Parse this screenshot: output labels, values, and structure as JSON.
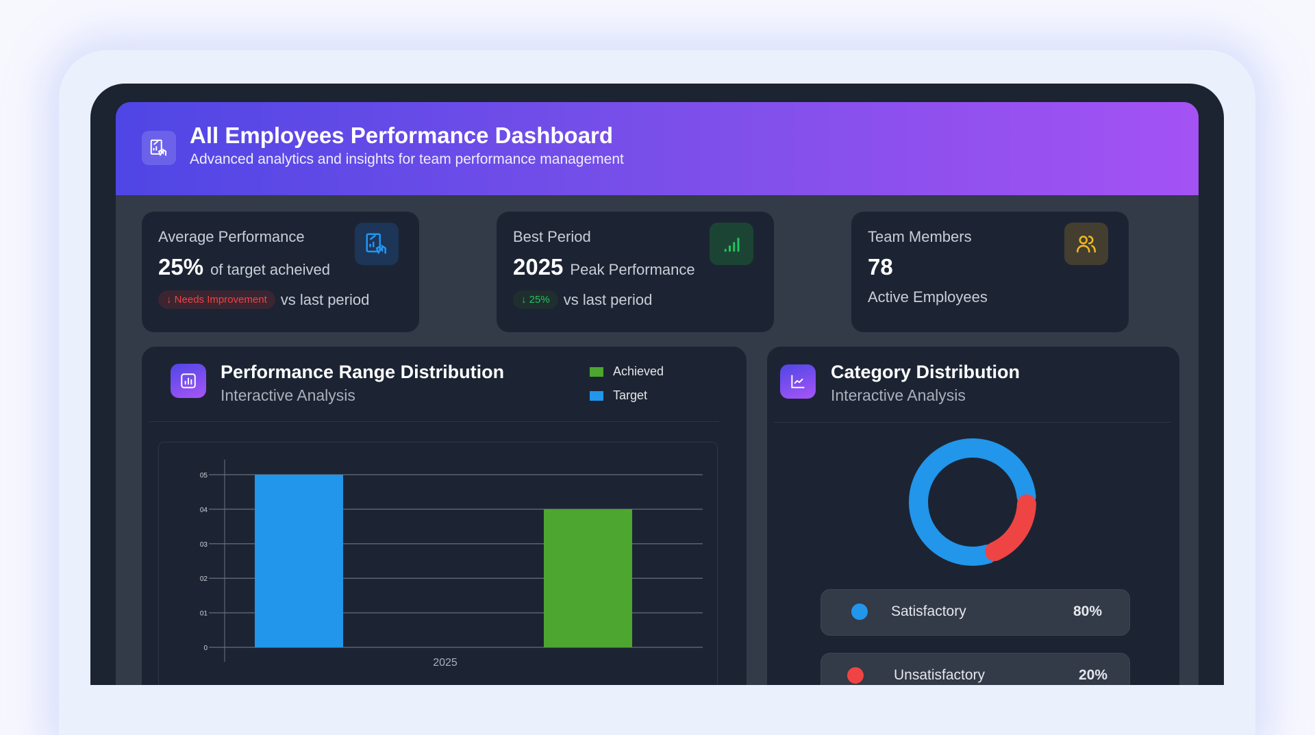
{
  "header": {
    "title": "All Employees Performance Dashboard",
    "subtitle": "Advanced analytics and insights for team performance management",
    "icon": "presentation-chart-icon"
  },
  "stats": [
    {
      "label": "Average Performance",
      "value": "25%",
      "value_caption": "of target acheived",
      "badge": "Needs Improvement",
      "badge_icon": "arrow-down-icon",
      "badge_color": "#ef4444",
      "comparison": "vs last period",
      "icon": "presentation-chart-icon",
      "icon_color": "#2196f3"
    },
    {
      "label": "Best Period",
      "value": "2025",
      "value_caption": "Peak Performance",
      "badge": "25%",
      "badge_icon": "arrow-down-icon",
      "badge_color": "#22c55e",
      "comparison": "vs last period",
      "icon": "signal-bars-icon",
      "icon_color": "#22c55e"
    },
    {
      "label": "Team Members",
      "value": "78",
      "caption": "Active Employees",
      "icon": "users-icon",
      "icon_color": "#f5b820"
    }
  ],
  "range_panel": {
    "title": "Performance Range Distribution",
    "subtitle": "Interactive Analysis",
    "legend": [
      {
        "label": "Achieved",
        "color": "#4da62f"
      },
      {
        "label": "Target",
        "color": "#2196eb"
      }
    ]
  },
  "category_panel": {
    "title": "Category Distribution",
    "subtitle": "Interactive Analysis",
    "items": [
      {
        "label": "Satisfactory",
        "value": "80%",
        "color": "#2196eb"
      },
      {
        "label": "Unsatisfactory",
        "value": "20%",
        "color": "#ef4444"
      }
    ]
  },
  "chart_data": [
    {
      "type": "bar",
      "categories": [
        "2025"
      ],
      "series": [
        {
          "name": "Target",
          "values": [
            5
          ],
          "color": "#2196eb"
        },
        {
          "name": "Achieved",
          "values": [
            4
          ],
          "color": "#4da62f"
        }
      ],
      "ylim": [
        0,
        5
      ],
      "yticks": [
        "0",
        "01",
        "02",
        "03",
        "04",
        "05"
      ],
      "grid": true,
      "legend": "top-right"
    },
    {
      "type": "pie",
      "donut": true,
      "labels": [
        "Satisfactory",
        "Unsatisfactory"
      ],
      "values": [
        80,
        20
      ],
      "colors": [
        "#2196eb",
        "#ef4444"
      ]
    }
  ]
}
